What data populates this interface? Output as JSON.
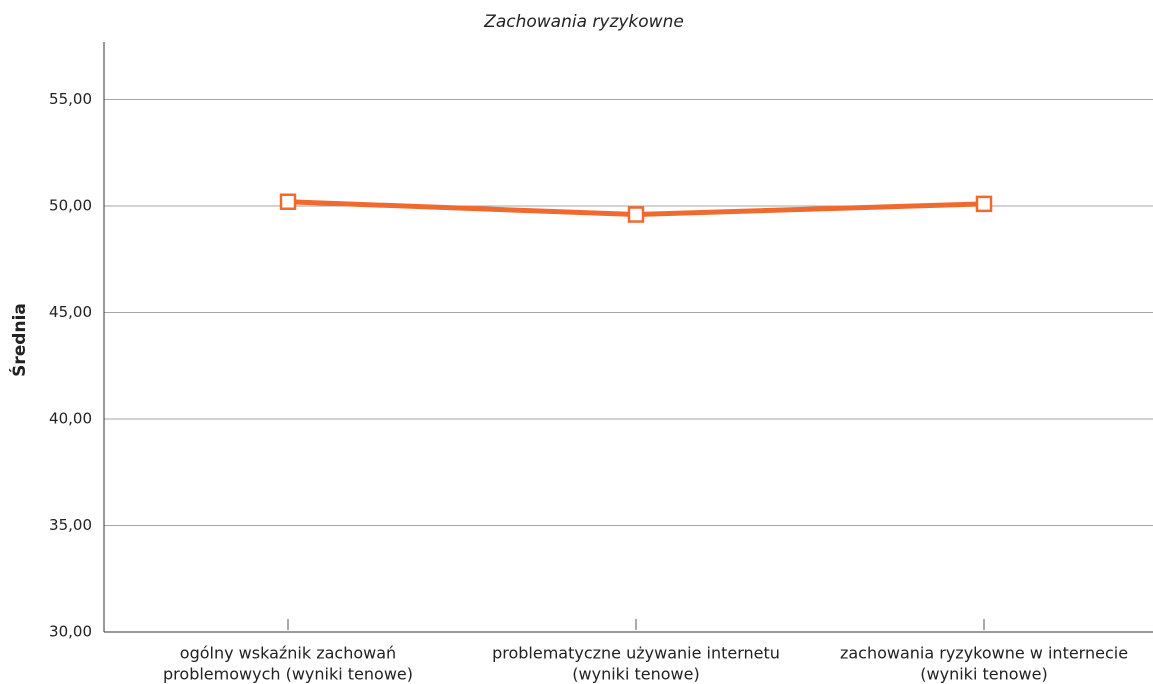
{
  "chart_data": {
    "type": "line",
    "title": "Zachowania ryzykowne",
    "y_label": "Średnia",
    "categories": [
      [
        "ogólny wskaźnik zachowań",
        "problemowych (wyniki tenowe)"
      ],
      [
        "problematyczne używanie internetu",
        "(wyniki tenowe)"
      ],
      [
        "zachowania ryzykowne w internecie",
        "(wyniki tenowe)"
      ]
    ],
    "series": [
      {
        "name": "Średnia",
        "color": "#f06a2f",
        "values": [
          50.2,
          49.6,
          50.1
        ]
      }
    ],
    "ylim": [
      30,
      57.7
    ],
    "yticks": [
      {
        "value": 30,
        "label": "30,00"
      },
      {
        "value": 35,
        "label": "35,00"
      },
      {
        "value": 40,
        "label": "40,00"
      },
      {
        "value": 45,
        "label": "45,00"
      },
      {
        "value": 50,
        "label": "50,00"
      },
      {
        "value": 55,
        "label": "55,00"
      }
    ],
    "grid": true
  }
}
